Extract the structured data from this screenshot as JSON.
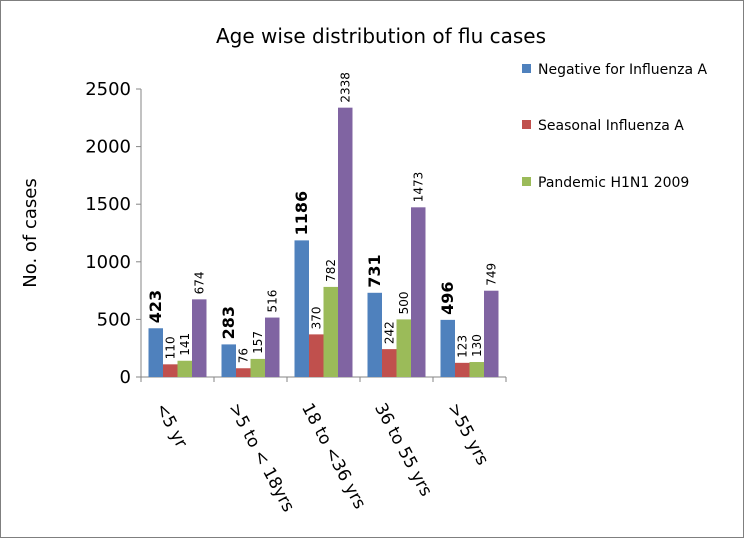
{
  "chart_data": {
    "type": "bar",
    "title": "Age wise distribution of flu cases",
    "ylabel": "No. of cases",
    "xlabel": "",
    "ylim": [
      0,
      2500
    ],
    "yticks": [
      0,
      500,
      1000,
      1500,
      2000,
      2500
    ],
    "grid": false,
    "legend_position": "right",
    "categories": [
      "<5 yr",
      ">5 to < 18yrs",
      "18 to <36 yrs",
      "36 to 55 yrs",
      ">55 yrs"
    ],
    "series": [
      {
        "name": "Negative for Influenza A",
        "color": "#4f81bd",
        "values": [
          423,
          283,
          1186,
          731,
          496
        ]
      },
      {
        "name": "Seasonal Influenza A",
        "color": "#c0504d",
        "values": [
          110,
          76,
          370,
          242,
          123
        ]
      },
      {
        "name": "Pandemic H1N1 2009",
        "color": "#9bbb59",
        "values": [
          141,
          157,
          782,
          500,
          130
        ]
      },
      {
        "name": "",
        "color": "#8064a2",
        "values": [
          674,
          516,
          2338,
          1473,
          749
        ]
      }
    ]
  }
}
